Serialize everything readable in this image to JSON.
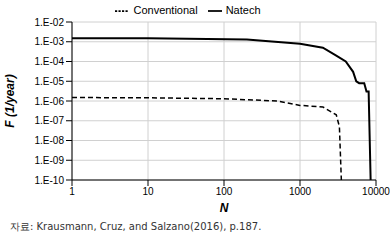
{
  "chart_data": {
    "type": "line",
    "x_label": "N",
    "y_label": "F (1/year)",
    "annotation": "자료: Krausmann, Cruz, and Salzano(2016), p.187.",
    "log": true,
    "grid": true,
    "legend": "top",
    "xlim": [
      1,
      10000
    ],
    "xticks": [
      1,
      10,
      100,
      1000,
      10000
    ],
    "ylim": [
      1e-10,
      0.01
    ],
    "yticks": [
      {
        "value": 1e-10,
        "label": "1.E-10"
      },
      {
        "value": 1e-09,
        "label": "1.E-09"
      },
      {
        "value": 1e-08,
        "label": "1.E-08"
      },
      {
        "value": 1e-07,
        "label": "1.E-07"
      },
      {
        "value": 1e-06,
        "label": "1.E-06"
      },
      {
        "value": 1e-05,
        "label": "1.E-05"
      },
      {
        "value": 0.0001,
        "label": "1.E-04"
      },
      {
        "value": 0.001,
        "label": "1.E-03"
      },
      {
        "value": 0.01,
        "label": "1.E-02"
      }
    ],
    "series": [
      {
        "name": "Conventional",
        "color": "#000000",
        "line_style": "dashed",
        "x": [
          1,
          10,
          100,
          500,
          1000,
          2000,
          3000,
          3300,
          3500
        ],
        "values": [
          1.5e-06,
          1.45e-06,
          1.3e-06,
          1e-06,
          6e-07,
          5e-07,
          2e-07,
          5e-08,
          1e-10
        ]
      },
      {
        "name": "Natech",
        "color": "#000000",
        "line_style": "solid",
        "x": [
          1,
          10,
          200,
          1000,
          2000,
          3000,
          4000,
          5000,
          5500,
          6000,
          7000,
          7500,
          8000,
          8500
        ],
        "values": [
          0.0015,
          0.0015,
          0.0013,
          0.0008,
          0.0005,
          0.0002,
          0.0001,
          3e-05,
          1e-05,
          8e-06,
          8e-06,
          3e-06,
          3e-06,
          1e-10
        ]
      }
    ]
  }
}
